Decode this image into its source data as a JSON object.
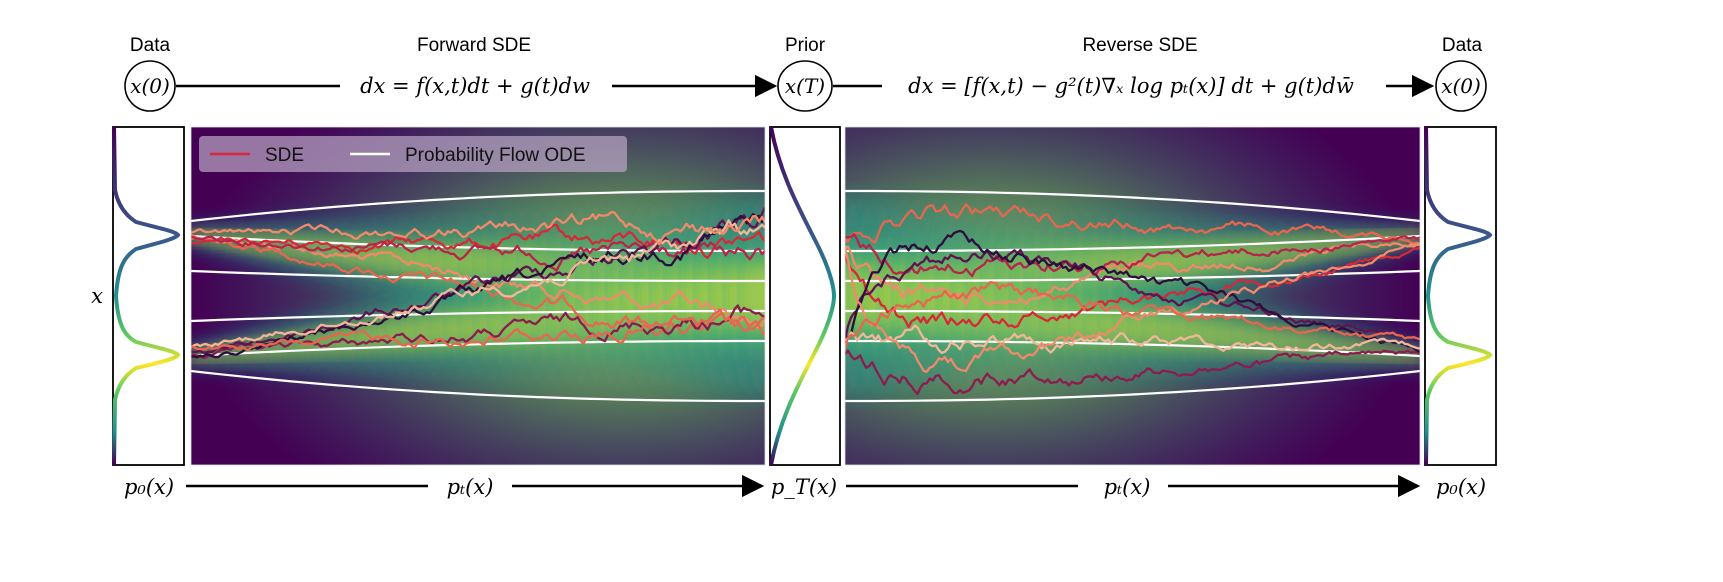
{
  "headers": {
    "data_left": "Data",
    "forward": "Forward SDE",
    "prior": "Prior",
    "reverse": "Reverse SDE",
    "data_right": "Data"
  },
  "nodes": {
    "x0_left": "x(0)",
    "xT": "x(T)",
    "x0_right": "x(0)"
  },
  "equations": {
    "forward": "dx = f(x,t)dt + g(t)dw",
    "reverse": "dx = [f(x,t) − g²(t)∇ₓ log pₜ(x)] dt + g(t)dw̄"
  },
  "legend": {
    "sde": "SDE",
    "ode": "Probability Flow ODE"
  },
  "axis": {
    "y_label": "x"
  },
  "bottom_labels": {
    "p0_left": "p₀(x)",
    "pt_forward": "pₜ(x)",
    "pT": "p_T(x)",
    "pt_reverse": "pₜ(x)",
    "p0_right": "p₀(x)"
  },
  "colors": {
    "sde_legend": "#d62839",
    "ode_legend": "#ffffff",
    "sde_paths": [
      "#f08a6a",
      "#e8664f",
      "#d62839",
      "#b8244a",
      "#8c1c4f",
      "#5e1450",
      "#2d0f3d",
      "#f2b79a"
    ],
    "viridis_dark": "#440154",
    "viridis_mid": "#21918c",
    "viridis_bright": "#fde725"
  }
}
